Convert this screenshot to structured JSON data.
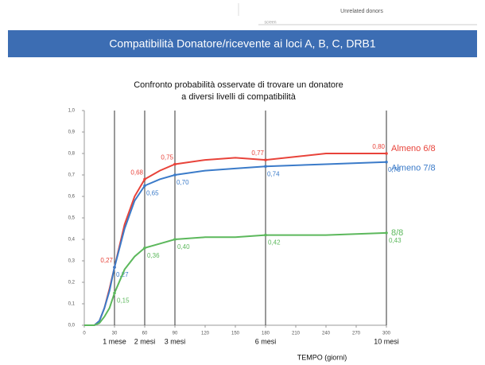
{
  "header": {
    "note": "Unrelated donors",
    "small": "screen",
    "banner": "Compatibilità Donatore/ricevente ai loci A, B, C, DRB1"
  },
  "chart_data": {
    "type": "line",
    "title": [
      "Confronto probabilità osservate di trovare un donatore",
      "a diversi livelli di compatibilità"
    ],
    "x_label": "TEMPO (giorni)",
    "x": [
      0,
      10,
      15,
      20,
      25,
      30,
      40,
      50,
      60,
      75,
      90,
      120,
      150,
      180,
      240,
      300
    ],
    "series": [
      {
        "name": "Almeno 6/8",
        "color": "#e8433a",
        "values": [
          0,
          0,
          0.02,
          0.08,
          0.17,
          0.27,
          0.47,
          0.6,
          0.68,
          0.72,
          0.75,
          0.77,
          0.78,
          0.77,
          0.8,
          0.8
        ],
        "value_labels": [
          null,
          null,
          null,
          null,
          null,
          "0,27",
          null,
          null,
          "0,68",
          null,
          "0,75",
          null,
          null,
          "0,77",
          null,
          "0,80"
        ]
      },
      {
        "name": "Almeno 7/8",
        "color": "#3b7bc9",
        "values": [
          0,
          0,
          0.02,
          0.08,
          0.16,
          0.27,
          0.45,
          0.58,
          0.65,
          0.68,
          0.7,
          0.72,
          0.73,
          0.74,
          0.75,
          0.76
        ],
        "value_labels": [
          null,
          null,
          null,
          null,
          null,
          "0,27",
          null,
          null,
          "0,65",
          null,
          "0,70",
          null,
          null,
          "0,74",
          null,
          "0,76"
        ]
      },
      {
        "name": "8/8",
        "color": "#5cb85c",
        "values": [
          0,
          0,
          0.01,
          0.04,
          0.08,
          0.15,
          0.26,
          0.32,
          0.36,
          0.38,
          0.4,
          0.41,
          0.41,
          0.42,
          0.42,
          0.43
        ],
        "value_labels": [
          null,
          null,
          null,
          null,
          null,
          "0,15",
          null,
          null,
          "0,36",
          null,
          "0,40",
          null,
          null,
          "0,42",
          null,
          "0,43"
        ]
      }
    ],
    "xlim": [
      0,
      300
    ],
    "xticks": [
      0,
      30,
      60,
      90,
      120,
      150,
      180,
      210,
      240,
      270,
      300
    ],
    "ylim": [
      0,
      1
    ],
    "yticks": [
      {
        "value": 0,
        "label": "0,0"
      },
      {
        "value": 0.1,
        "label": "0,1"
      },
      {
        "value": 0.2,
        "label": "0,2"
      },
      {
        "value": 0.3,
        "label": "0,3"
      },
      {
        "value": 0.4,
        "label": "0,4"
      },
      {
        "value": 0.5,
        "label": "0,5"
      },
      {
        "value": 0.6,
        "label": "0,6"
      },
      {
        "value": 0.7,
        "label": "0,7"
      },
      {
        "value": 0.8,
        "label": "0,8"
      },
      {
        "value": 0.9,
        "label": "0,9"
      },
      {
        "value": 1,
        "label": "1,0"
      }
    ],
    "vlines": [
      {
        "value": 30,
        "label": "1 mese"
      },
      {
        "value": 60,
        "label": "2 mesi"
      },
      {
        "value": 90,
        "label": "3 mesi"
      },
      {
        "value": 180,
        "label": "6 mesi"
      },
      {
        "value": 300,
        "label": "10 mesi"
      }
    ]
  }
}
